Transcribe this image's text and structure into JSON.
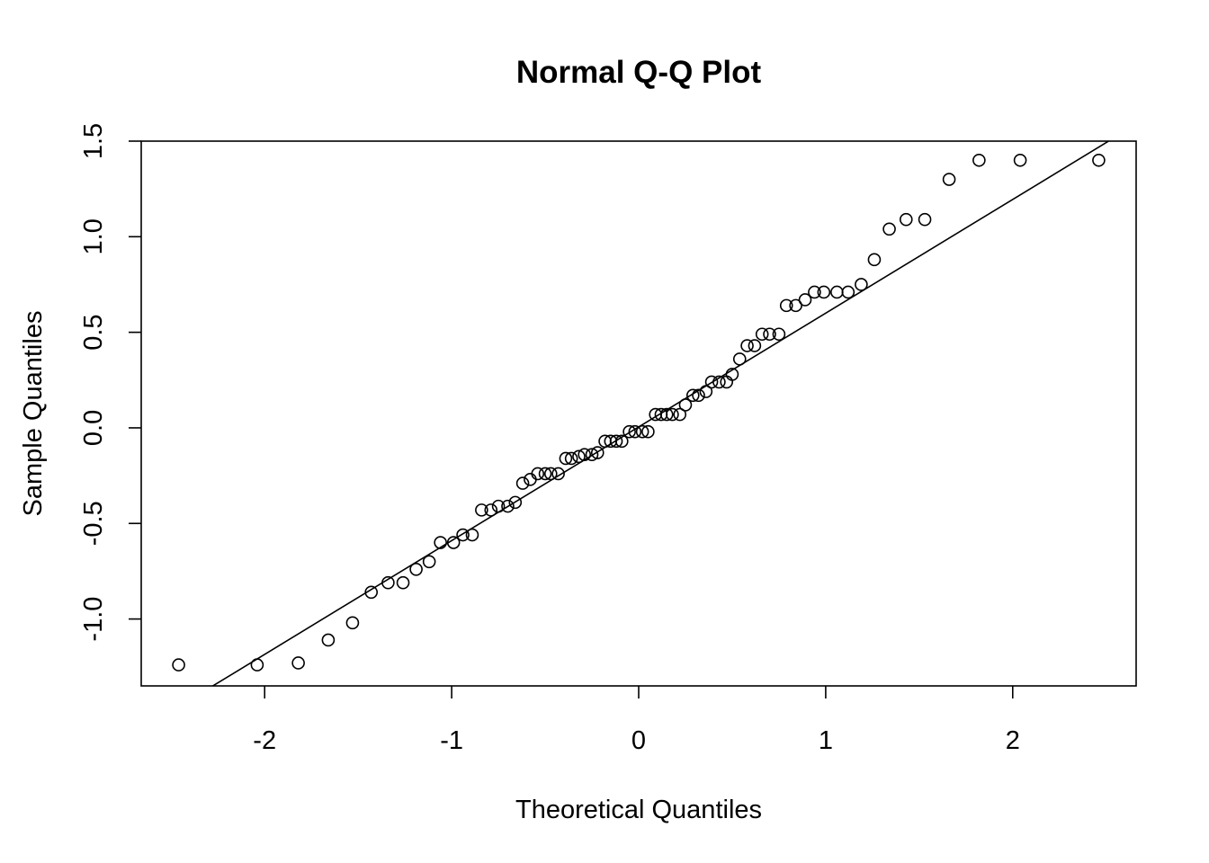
{
  "chart_data": {
    "type": "scatter",
    "title": "Normal Q-Q Plot",
    "xlabel": "Theoretical Quantiles",
    "ylabel": "Sample Quantiles",
    "xlim": [
      -2.66,
      2.66
    ],
    "ylim": [
      -1.35,
      1.5
    ],
    "x_ticks": [
      -2,
      -1,
      0,
      1,
      2
    ],
    "x_tick_labels": [
      "-2",
      "-1",
      "0",
      "1",
      "2"
    ],
    "y_ticks": [
      -1.0,
      -0.5,
      0.0,
      0.5,
      1.0,
      1.5
    ],
    "y_tick_labels": [
      "-1.0",
      "-0.5",
      "0.0",
      "0.5",
      "1.0",
      "1.5"
    ],
    "grid": false,
    "reference_line": {
      "intercept": 0.005,
      "slope": 0.595
    },
    "points": {
      "x": [
        -2.46,
        -2.04,
        -1.82,
        -1.66,
        -1.53,
        -1.43,
        -1.34,
        -1.26,
        -1.19,
        -1.12,
        -1.06,
        -0.99,
        -0.94,
        -0.89,
        -0.84,
        -0.79,
        -0.75,
        -0.7,
        -0.66,
        -0.62,
        -0.58,
        -0.54,
        -0.5,
        -0.47,
        -0.43,
        -0.39,
        -0.36,
        -0.32,
        -0.29,
        -0.25,
        -0.22,
        -0.18,
        -0.15,
        -0.12,
        -0.09,
        -0.05,
        -0.02,
        0.02,
        0.05,
        0.09,
        0.12,
        0.15,
        0.18,
        0.22,
        0.25,
        0.29,
        0.32,
        0.36,
        0.39,
        0.43,
        0.47,
        0.5,
        0.54,
        0.58,
        0.62,
        0.66,
        0.7,
        0.75,
        0.79,
        0.84,
        0.89,
        0.94,
        0.99,
        1.06,
        1.12,
        1.19,
        1.26,
        1.34,
        1.43,
        1.53,
        1.66,
        1.82,
        2.04,
        2.46
      ],
      "y": [
        -1.24,
        -1.24,
        -1.23,
        -1.11,
        -1.02,
        -0.86,
        -0.81,
        -0.81,
        -0.74,
        -0.7,
        -0.6,
        -0.6,
        -0.56,
        -0.56,
        -0.43,
        -0.43,
        -0.41,
        -0.41,
        -0.39,
        -0.29,
        -0.27,
        -0.24,
        -0.24,
        -0.24,
        -0.24,
        -0.16,
        -0.16,
        -0.15,
        -0.14,
        -0.14,
        -0.13,
        -0.07,
        -0.07,
        -0.07,
        -0.07,
        -0.02,
        -0.02,
        -0.02,
        -0.02,
        0.07,
        0.07,
        0.07,
        0.07,
        0.07,
        0.12,
        0.17,
        0.17,
        0.19,
        0.24,
        0.24,
        0.24,
        0.28,
        0.36,
        0.43,
        0.43,
        0.49,
        0.49,
        0.49,
        0.64,
        0.64,
        0.67,
        0.71,
        0.71,
        0.71,
        0.71,
        0.75,
        0.88,
        1.04,
        1.09,
        1.09,
        1.3,
        1.4,
        1.4,
        1.4
      ]
    }
  }
}
